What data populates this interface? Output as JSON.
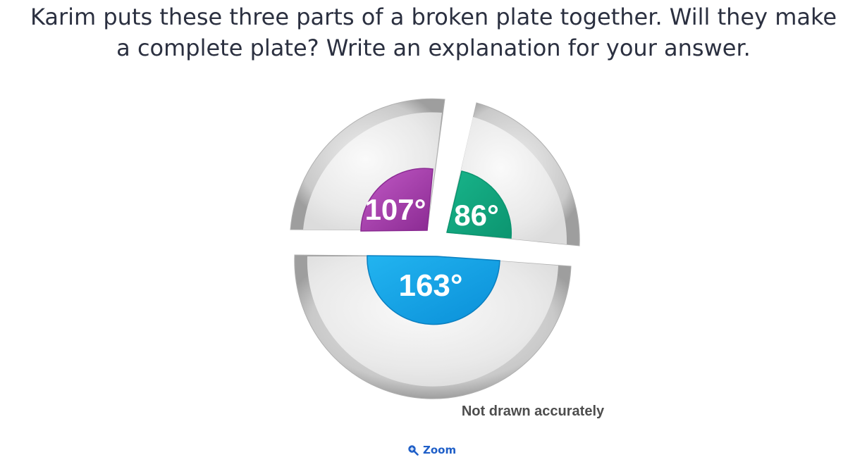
{
  "question": {
    "line1": "Karim puts these three parts of a broken plate together. Will they make",
    "line2": "a complete plate? Write an explanation for your answer."
  },
  "diagram": {
    "angles": [
      {
        "label": "107°",
        "value": 107,
        "color": "#a23ca8"
      },
      {
        "label": "86°",
        "value": 86,
        "color": "#13a47d"
      },
      {
        "label": "163°",
        "value": 163,
        "color": "#0a9fe0"
      }
    ],
    "note": "Not drawn accurately"
  },
  "zoom": {
    "label": "Zoom",
    "icon": "zoom-in-icon",
    "color": "#1f5fc8"
  }
}
